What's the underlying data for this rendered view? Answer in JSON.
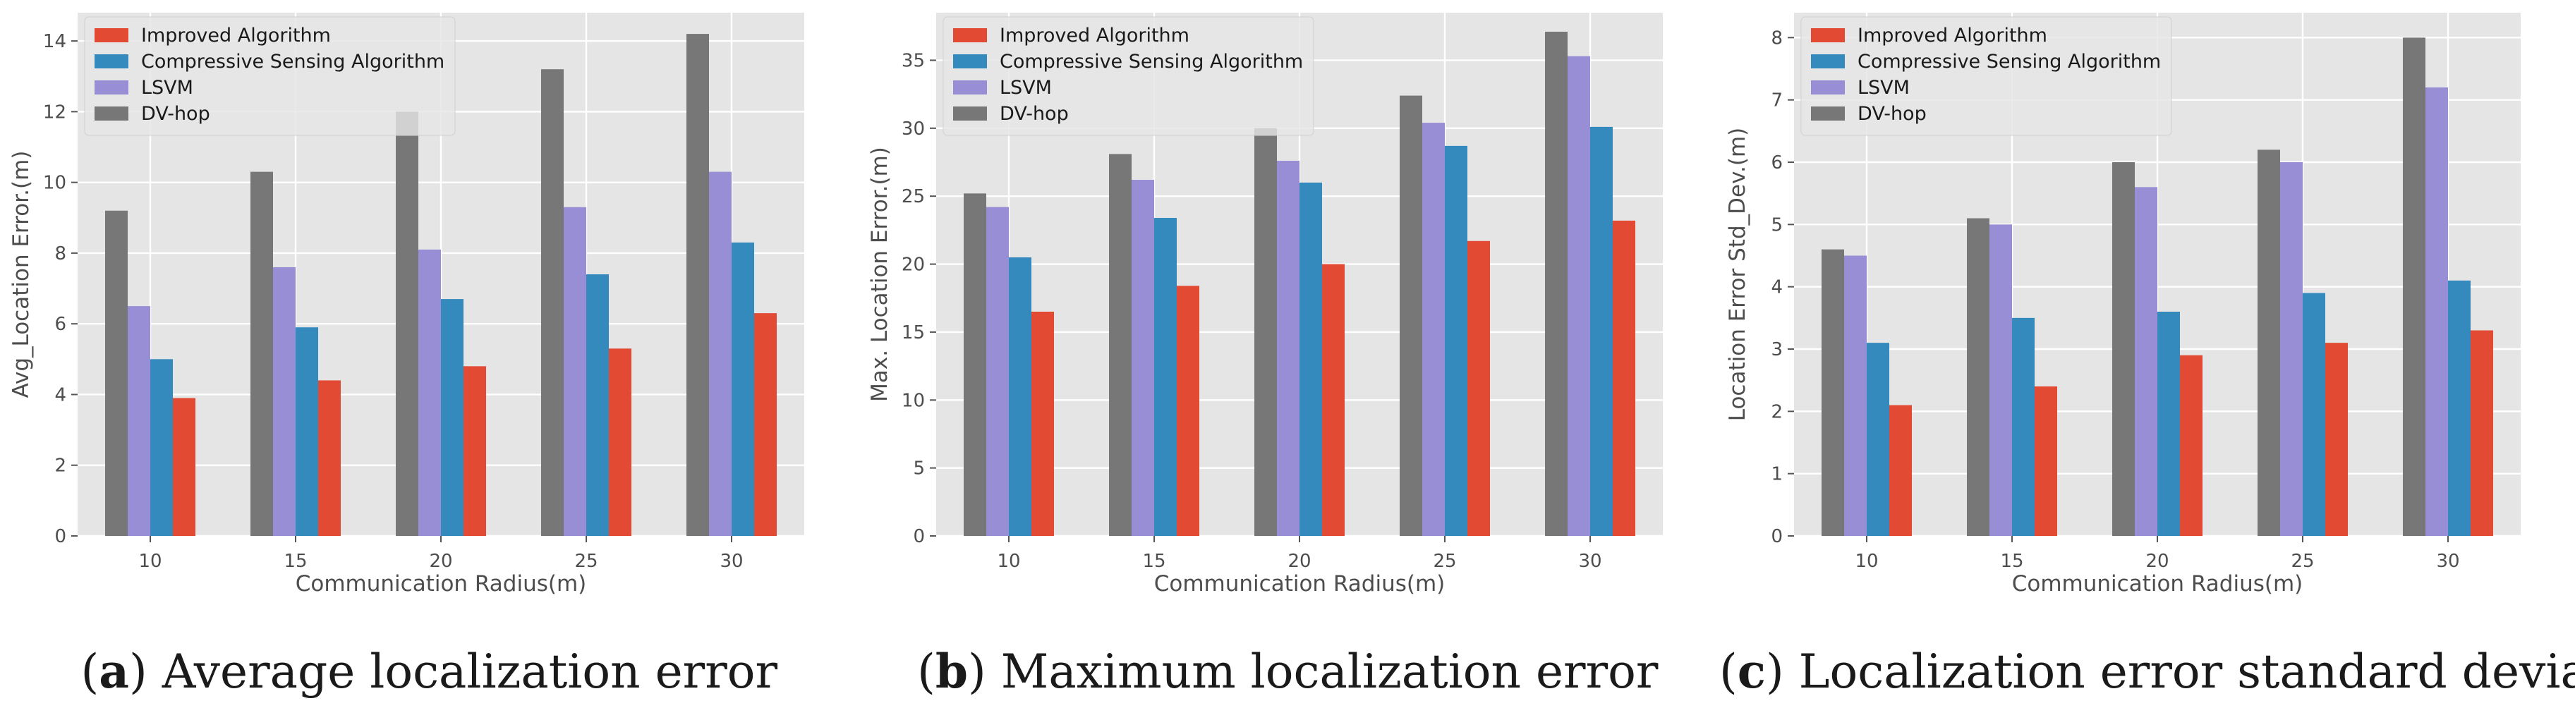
{
  "chart_data": [
    {
      "type": "bar",
      "caption_letter": "a",
      "caption_text": "Average localization error",
      "xlabel": "Communication Radius(m)",
      "ylabel": "Avg_Location Error.(m)",
      "categories": [
        "10",
        "15",
        "20",
        "25",
        "30"
      ],
      "ylim": [
        0,
        14.8
      ],
      "yticks": [
        0,
        2,
        4,
        6,
        8,
        10,
        12,
        14
      ],
      "legend_position": "top-left",
      "grid": true,
      "series": [
        {
          "name": "Improved Algorithm",
          "color": "#e24a33",
          "values": [
            3.9,
            4.4,
            4.8,
            5.3,
            6.3
          ]
        },
        {
          "name": "Compressive Sensing Algorithm",
          "color": "#348abd",
          "values": [
            5.0,
            5.9,
            6.7,
            7.4,
            8.3
          ]
        },
        {
          "name": "LSVM",
          "color": "#988ed5",
          "values": [
            6.5,
            7.6,
            8.1,
            9.3,
            10.3
          ]
        },
        {
          "name": "DV-hop",
          "color": "#777777",
          "values": [
            9.2,
            10.3,
            12.0,
            13.2,
            14.2
          ]
        }
      ]
    },
    {
      "type": "bar",
      "caption_letter": "b",
      "caption_text": "Maximum localization error",
      "xlabel": "Communication Radius(m)",
      "ylabel": "Max. Location Error.(m)",
      "categories": [
        "10",
        "15",
        "20",
        "25",
        "30"
      ],
      "ylim": [
        0,
        38.5
      ],
      "yticks": [
        0,
        5,
        10,
        15,
        20,
        25,
        30,
        35
      ],
      "legend_position": "top-left",
      "grid": true,
      "series": [
        {
          "name": "Improved Algorithm",
          "color": "#e24a33",
          "values": [
            16.5,
            18.4,
            20.0,
            21.7,
            23.2
          ]
        },
        {
          "name": "Compressive Sensing Algorithm",
          "color": "#348abd",
          "values": [
            20.5,
            23.4,
            26.0,
            28.7,
            30.1
          ]
        },
        {
          "name": "LSVM",
          "color": "#988ed5",
          "values": [
            24.2,
            26.2,
            27.6,
            30.4,
            35.3
          ]
        },
        {
          "name": "DV-hop",
          "color": "#777777",
          "values": [
            25.2,
            28.1,
            30.0,
            32.4,
            37.1
          ]
        }
      ]
    },
    {
      "type": "bar",
      "caption_letter": "c",
      "caption_text": "Localization error standard deviation",
      "xlabel": "Communication Radius(m)",
      "ylabel": "Location Error Std_Dev.(m)",
      "categories": [
        "10",
        "15",
        "20",
        "25",
        "30"
      ],
      "ylim": [
        0,
        8.4
      ],
      "yticks": [
        0,
        1,
        2,
        3,
        4,
        5,
        6,
        7,
        8
      ],
      "legend_position": "top-left",
      "grid": true,
      "series": [
        {
          "name": "Improved Algorithm",
          "color": "#e24a33",
          "values": [
            2.1,
            2.4,
            2.9,
            3.1,
            3.3
          ]
        },
        {
          "name": "Compressive Sensing Algorithm",
          "color": "#348abd",
          "values": [
            3.1,
            3.5,
            3.6,
            3.9,
            4.1
          ]
        },
        {
          "name": "LSVM",
          "color": "#988ed5",
          "values": [
            4.5,
            5.0,
            5.6,
            6.0,
            7.2
          ]
        },
        {
          "name": "DV-hop",
          "color": "#777777",
          "values": [
            4.6,
            5.1,
            6.0,
            6.2,
            8.0
          ]
        }
      ]
    }
  ]
}
